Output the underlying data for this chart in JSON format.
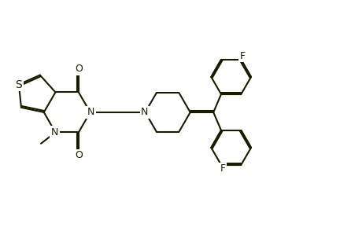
{
  "lc": "#1a1a00",
  "lw": 1.5,
  "doff": 0.055,
  "fs": 9,
  "xlim": [
    0.0,
    10.5
  ],
  "ylim": [
    0.5,
    7.0
  ]
}
